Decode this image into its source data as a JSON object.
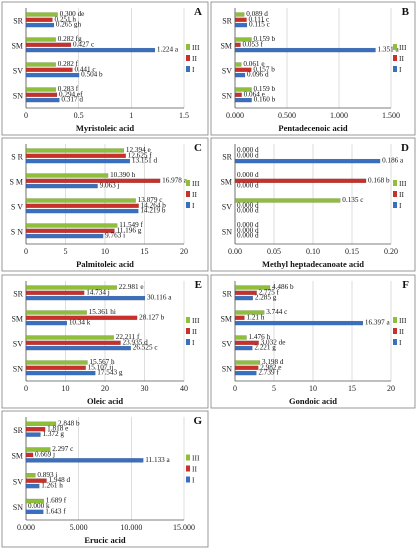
{
  "colors": {
    "I": "#3a6fc0",
    "II": "#c8302c",
    "III": "#8fbf3a",
    "frame": "#7f7f7f",
    "grid": "#c8c8c8"
  },
  "chart_data": [
    {
      "type": "bar",
      "panel": "A",
      "xlabel": "Myristoleic acid",
      "categories": [
        "SR",
        "SM",
        "SV",
        "SN"
      ],
      "xlim": [
        0,
        1.5
      ],
      "ticks": [
        "0",
        "0.5",
        "1",
        "1.5"
      ],
      "legend": [
        "III",
        "II",
        "I"
      ],
      "series": [
        {
          "name": "I",
          "values": [
            0.265,
            1.224,
            0.504,
            0.317
          ],
          "labels": [
            "0.265 gh",
            "1.224 a",
            "0.504 b",
            "0.317 d"
          ]
        },
        {
          "name": "II",
          "values": [
            0.251,
            0.427,
            0.441,
            0.294
          ],
          "labels": [
            "0.251 h",
            "0.427 c",
            "0.441 c",
            "0.294 ef"
          ]
        },
        {
          "name": "III",
          "values": [
            0.3,
            0.282,
            0.282,
            0.283
          ],
          "labels": [
            "0.300 de",
            "0.282 fg",
            "0.282 f",
            "0.283 f"
          ]
        }
      ]
    },
    {
      "type": "bar",
      "panel": "B",
      "xlabel": "Pentadecenoic acid",
      "categories": [
        "SR",
        "SM",
        "SV",
        "SN"
      ],
      "xlim": [
        0,
        1.5
      ],
      "ticks": [
        "0.000",
        "0.500",
        "1.000",
        "1.500"
      ],
      "legend": [
        "III",
        "II",
        "I"
      ],
      "series": [
        {
          "name": "I",
          "values": [
            0.115,
            1.351,
            0.096,
            0.16
          ],
          "labels": [
            "0.115 c",
            "1.351 a",
            "0.096 d",
            "0.160 b"
          ]
        },
        {
          "name": "II",
          "values": [
            0.111,
            0.053,
            0.157,
            0.064
          ],
          "labels": [
            "0.111 c",
            "0.053 f",
            "0.157 b",
            "0.064 e"
          ]
        },
        {
          "name": "III",
          "values": [
            0.089,
            0.159,
            0.061,
            0.159
          ],
          "labels": [
            "0.089 d",
            "0.159 b",
            "0.061 e",
            "0.159 b"
          ]
        }
      ]
    },
    {
      "type": "bar",
      "panel": "C",
      "xlabel": "Palmitoleic acid",
      "categories": [
        "S R",
        "S M",
        "S V",
        "S N"
      ],
      "xlim": [
        0,
        20
      ],
      "ticks": [
        "0",
        "5",
        "10",
        "15",
        "20"
      ],
      "legend": [
        "III",
        "II",
        "I"
      ],
      "series": [
        {
          "name": "I",
          "values": [
            13.151,
            9.063,
            14.219,
            9.763
          ],
          "labels": [
            "13.151 d",
            "9.063 j",
            "14.219 b",
            "9.763 i"
          ]
        },
        {
          "name": "II",
          "values": [
            12.625,
            16.978,
            14.264,
            11.196
          ],
          "labels": [
            "12.625 f",
            "16.978 a",
            "14.264 b",
            "11.196 g"
          ]
        },
        {
          "name": "III",
          "values": [
            12.394,
            10.39,
            13.879,
            11.549
          ],
          "labels": [
            "12.394 e",
            "10.390 h",
            "13.879 c",
            "11.549 f"
          ]
        }
      ]
    },
    {
      "type": "bar",
      "panel": "D",
      "xlabel": "Methyl heptadecanoate acid",
      "categories": [
        "SR",
        "SM",
        "SV",
        "SN"
      ],
      "xlim": [
        0,
        0.2
      ],
      "ticks": [
        "0.00",
        "0.05",
        "0.10",
        "0.15",
        "0.20"
      ],
      "legend": [
        "III",
        "II",
        "I"
      ],
      "series": [
        {
          "name": "I",
          "values": [
            0.186,
            0,
            0,
            0
          ],
          "labels": [
            "0.186 a",
            "0.000 d",
            "0.000 d",
            "0.000 d"
          ]
        },
        {
          "name": "II",
          "values": [
            0,
            0.168,
            0,
            0
          ],
          "labels": [
            "0.000 d",
            "0.168 b",
            "0.000 d",
            "0.000 d"
          ]
        },
        {
          "name": "III",
          "values": [
            0,
            0,
            0.135,
            0
          ],
          "labels": [
            "0.000 d",
            "0.000 d",
            "0.135 c",
            "0.000 d"
          ]
        }
      ]
    },
    {
      "type": "bar",
      "panel": "E",
      "xlabel": "Oleic acid",
      "categories": [
        "SR",
        "SM",
        "SV",
        "SN"
      ],
      "xlim": [
        0,
        40
      ],
      "ticks": [
        "0",
        "10",
        "20",
        "30",
        "40"
      ],
      "legend": [
        "III",
        "II",
        "I"
      ],
      "series": [
        {
          "name": "I",
          "values": [
            30.116,
            10.34,
            26.525,
            17.543
          ],
          "labels": [
            "30.116 a",
            "10.34 k",
            "26.525 c",
            "17.543 g"
          ]
        },
        {
          "name": "II",
          "values": [
            14.734,
            28.127,
            23.935,
            15.107
          ],
          "labels": [
            "14.734 j",
            "28.127 b",
            "23.935 d",
            "15.107 ij"
          ]
        },
        {
          "name": "III",
          "values": [
            22.981,
            15.361,
            22.211,
            15.567
          ],
          "labels": [
            "22.981 e",
            "15.361 hi",
            "22.211 f",
            "15.567 h"
          ]
        }
      ]
    },
    {
      "type": "bar",
      "panel": "F",
      "xlabel": "Gondoic acid",
      "categories": [
        "SR",
        "SM",
        "SV",
        "SN"
      ],
      "xlim": [
        0,
        20
      ],
      "ticks": [
        "0",
        "5",
        "10",
        "15",
        "20"
      ],
      "legend": [
        "III",
        "II",
        "I"
      ],
      "series": [
        {
          "name": "I",
          "values": [
            2.285,
            16.397,
            2.221,
            2.739
          ],
          "labels": [
            "2.285 g",
            "16.397 a",
            "2.221 g",
            "2.739 f"
          ]
        },
        {
          "name": "II",
          "values": [
            2.775,
            1.21,
            3.032,
            2.982
          ],
          "labels": [
            "2.775 f",
            "1.21 h",
            "3.032 de",
            "2.982 e"
          ]
        },
        {
          "name": "III",
          "values": [
            4.486,
            3.744,
            1.476,
            3.198
          ],
          "labels": [
            "4.486 b",
            "3.744 c",
            "1.476 h",
            "3.198 d"
          ]
        }
      ]
    },
    {
      "type": "bar",
      "panel": "G",
      "xlabel": "Erucic acid",
      "categories": [
        "SR",
        "SM",
        "SV",
        "SN"
      ],
      "xlim": [
        0,
        15
      ],
      "ticks": [
        "0.000",
        "5.000",
        "10.000",
        "15.000"
      ],
      "legend": [
        "III",
        "II",
        "I"
      ],
      "series": [
        {
          "name": "I",
          "values": [
            1.372,
            11.133,
            1.261,
            1.643
          ],
          "labels": [
            "1.372 g",
            "11.133 a",
            "1.261 h",
            "1.643 f"
          ]
        },
        {
          "name": "II",
          "values": [
            1.818,
            0.669,
            1.948,
            0
          ],
          "labels": [
            "1.818 e",
            "0.669 j",
            "1.948 d",
            "0.000 k"
          ]
        },
        {
          "name": "III",
          "values": [
            2.848,
            2.297,
            0.893,
            1.689
          ],
          "labels": [
            "2.848 b",
            "2.297 c",
            "0.893 i",
            "1.689 f"
          ]
        }
      ]
    }
  ]
}
